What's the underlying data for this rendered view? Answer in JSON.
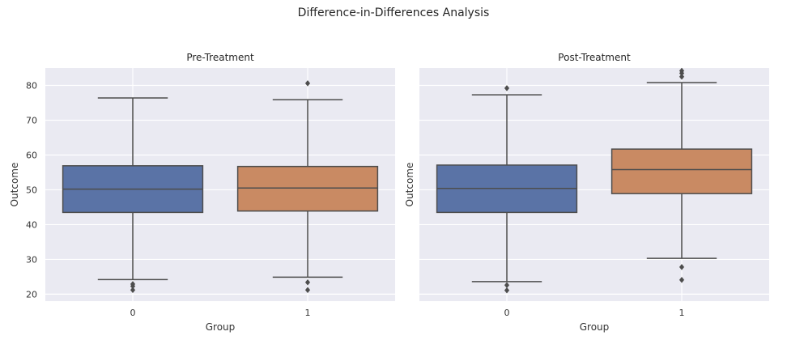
{
  "figure": {
    "title": "Difference-in-Differences Analysis",
    "background": "#ffffff",
    "panel_background": "#eaeaf2",
    "grid_color": "#ffffff",
    "line_color": "#4d4d4d",
    "text_color": "#333333"
  },
  "chart_data": [
    {
      "type": "box",
      "title": "Pre-Treatment",
      "xlabel": "Group",
      "ylabel": "Outcome",
      "categories": [
        "0",
        "1"
      ],
      "ylim": [
        18,
        85
      ],
      "yticks": [
        20,
        30,
        40,
        50,
        60,
        70,
        80
      ],
      "grid": true,
      "boxes": [
        {
          "category": "0",
          "color": "#5a73a6",
          "whisker_low": 24.2,
          "q1": 43.5,
          "median": 50.2,
          "q3": 56.9,
          "whisker_high": 76.4,
          "outliers": [
            21.2,
            22.3,
            22.9
          ]
        },
        {
          "category": "1",
          "color": "#c98a63",
          "whisker_low": 24.9,
          "q1": 43.9,
          "median": 50.5,
          "q3": 56.7,
          "whisker_high": 75.9,
          "outliers": [
            21.2,
            23.4,
            80.6
          ]
        }
      ]
    },
    {
      "type": "box",
      "title": "Post-Treatment",
      "xlabel": "Group",
      "ylabel": "Outcome",
      "categories": [
        "0",
        "1"
      ],
      "ylim": [
        18,
        85
      ],
      "yticks": [
        20,
        30,
        40,
        50,
        60,
        70,
        80
      ],
      "grid": true,
      "boxes": [
        {
          "category": "0",
          "color": "#5a73a6",
          "whisker_low": 23.6,
          "q1": 43.5,
          "median": 50.4,
          "q3": 57.1,
          "whisker_high": 77.3,
          "outliers": [
            21.1,
            22.6,
            79.2
          ]
        },
        {
          "category": "1",
          "color": "#c98a63",
          "whisker_low": 30.3,
          "q1": 48.9,
          "median": 55.8,
          "q3": 61.7,
          "whisker_high": 80.8,
          "outliers": [
            24.1,
            27.8,
            82.5,
            83.5,
            84.2
          ]
        }
      ]
    }
  ]
}
